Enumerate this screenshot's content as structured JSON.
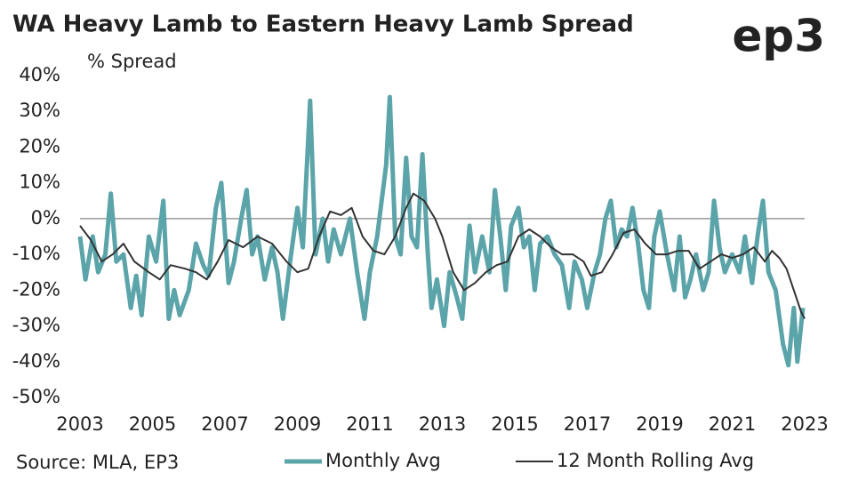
{
  "chart_data": {
    "type": "line",
    "title": "WA Heavy Lamb to Eastern Heavy Lamb Spread",
    "logo": "ep3",
    "y_label": "% Spread",
    "source": "Source: MLA, EP3",
    "xlim": [
      2003,
      2023
    ],
    "xticks": [
      2003,
      2005,
      2007,
      2009,
      2011,
      2013,
      2015,
      2017,
      2019,
      2021,
      2023
    ],
    "ylim": [
      -50,
      40
    ],
    "yticks": [
      {
        "value": 40,
        "label": "40%"
      },
      {
        "value": 30,
        "label": "30%"
      },
      {
        "value": 20,
        "label": "20%"
      },
      {
        "value": 10,
        "label": "10%"
      },
      {
        "value": 0,
        "label": "0%"
      },
      {
        "value": -10,
        "label": "-10%"
      },
      {
        "value": -20,
        "label": "-20%"
      },
      {
        "value": -30,
        "label": "-30%"
      },
      {
        "value": -40,
        "label": "-40%"
      },
      {
        "value": -50,
        "label": "-50%"
      }
    ],
    "zero_line": true,
    "series": [
      {
        "name": "Monthly Avg",
        "color": "#5ba4a9",
        "width": 5,
        "x": [
          2003.0,
          2003.15,
          2003.35,
          2003.5,
          2003.7,
          2003.85,
          2004.0,
          2004.2,
          2004.4,
          2004.55,
          2004.7,
          2004.9,
          2005.1,
          2005.3,
          2005.45,
          2005.6,
          2005.75,
          2006.0,
          2006.2,
          2006.4,
          2006.55,
          2006.75,
          2006.9,
          2007.1,
          2007.25,
          2007.45,
          2007.6,
          2007.75,
          2007.9,
          2008.1,
          2008.3,
          2008.45,
          2008.6,
          2008.8,
          2009.0,
          2009.15,
          2009.35,
          2009.5,
          2009.7,
          2009.85,
          2010.0,
          2010.2,
          2010.45,
          2010.65,
          2010.85,
          2011.0,
          2011.2,
          2011.45,
          2011.55,
          2011.7,
          2011.85,
          2012.0,
          2012.15,
          2012.3,
          2012.45,
          2012.6,
          2012.7,
          2012.85,
          2013.05,
          2013.2,
          2013.4,
          2013.55,
          2013.75,
          2013.9,
          2014.1,
          2014.3,
          2014.45,
          2014.6,
          2014.75,
          2014.9,
          2015.1,
          2015.25,
          2015.4,
          2015.55,
          2015.7,
          2015.9,
          2016.1,
          2016.3,
          2016.5,
          2016.65,
          2016.85,
          2017.0,
          2017.2,
          2017.35,
          2017.5,
          2017.65,
          2017.8,
          2017.95,
          2018.1,
          2018.25,
          2018.4,
          2018.55,
          2018.7,
          2018.85,
          2019.0,
          2019.2,
          2019.4,
          2019.55,
          2019.7,
          2019.85,
          2020.0,
          2020.2,
          2020.35,
          2020.5,
          2020.65,
          2020.8,
          2021.0,
          2021.2,
          2021.35,
          2021.55,
          2021.7,
          2021.85,
          2022.0,
          2022.2,
          2022.4,
          2022.55,
          2022.7,
          2022.8,
          2022.95
        ],
        "values": [
          -5,
          -17,
          -5,
          -15,
          -10,
          7,
          -12,
          -10,
          -25,
          -16,
          -27,
          -5,
          -12,
          5,
          -28,
          -20,
          -27,
          -20,
          -7,
          -13,
          -16,
          3,
          10,
          -18,
          -12,
          0,
          8,
          -10,
          -5,
          -17,
          -8,
          -15,
          -28,
          -12,
          3,
          -8,
          33,
          -10,
          0,
          -12,
          -3,
          -10,
          0,
          -15,
          -28,
          -15,
          -5,
          15,
          34,
          -5,
          -10,
          17,
          -5,
          -8,
          18,
          -10,
          -25,
          -17,
          -30,
          -15,
          -22,
          -28,
          -2,
          -15,
          -5,
          -15,
          8,
          -5,
          -20,
          -2,
          3,
          -8,
          -5,
          -20,
          -7,
          -5,
          -10,
          -13,
          -25,
          -12,
          -17,
          -25,
          -15,
          -10,
          0,
          5,
          -8,
          -3,
          -5,
          3,
          -7,
          -20,
          -25,
          -5,
          2,
          -10,
          -20,
          -5,
          -22,
          -17,
          -10,
          -20,
          -15,
          5,
          -8,
          -15,
          -10,
          -15,
          -5,
          -18,
          -5,
          5,
          -15,
          -20,
          -35,
          -41,
          -25,
          -40,
          -25
        ]
      },
      {
        "name": "12 Month Rolling Avg",
        "color": "#333333",
        "width": 2,
        "x": [
          2003.0,
          2003.3,
          2003.6,
          2003.9,
          2004.2,
          2004.5,
          2004.9,
          2005.2,
          2005.5,
          2005.9,
          2006.2,
          2006.5,
          2006.8,
          2007.1,
          2007.5,
          2007.9,
          2008.3,
          2008.7,
          2009.0,
          2009.3,
          2009.6,
          2009.9,
          2010.2,
          2010.5,
          2010.8,
          2011.1,
          2011.4,
          2011.7,
          2012.0,
          2012.2,
          2012.5,
          2012.8,
          2013.0,
          2013.3,
          2013.6,
          2013.9,
          2014.2,
          2014.5,
          2014.8,
          2015.1,
          2015.4,
          2015.7,
          2016.0,
          2016.3,
          2016.6,
          2016.9,
          2017.1,
          2017.4,
          2017.7,
          2018.0,
          2018.3,
          2018.6,
          2018.9,
          2019.2,
          2019.5,
          2019.8,
          2020.1,
          2020.4,
          2020.7,
          2021.0,
          2021.3,
          2021.6,
          2021.9,
          2022.1,
          2022.3,
          2022.5,
          2022.7,
          2022.9,
          2023.0
        ],
        "values": [
          -2,
          -6,
          -12,
          -10,
          -7,
          -12,
          -15,
          -17,
          -13,
          -14,
          -15,
          -17,
          -12,
          -6,
          -8,
          -5,
          -7,
          -12,
          -15,
          -14,
          -5,
          2,
          1,
          3,
          -5,
          -9,
          -10,
          -5,
          3,
          7,
          5,
          0,
          -5,
          -15,
          -20,
          -18,
          -15,
          -13,
          -12,
          -5,
          -3,
          -5,
          -8,
          -10,
          -10,
          -12,
          -16,
          -15,
          -10,
          -4,
          -3,
          -7,
          -10,
          -10,
          -9,
          -9,
          -14,
          -12,
          -10,
          -11,
          -10,
          -8,
          -12,
          -9,
          -11,
          -14,
          -20,
          -26,
          -28
        ]
      }
    ]
  }
}
